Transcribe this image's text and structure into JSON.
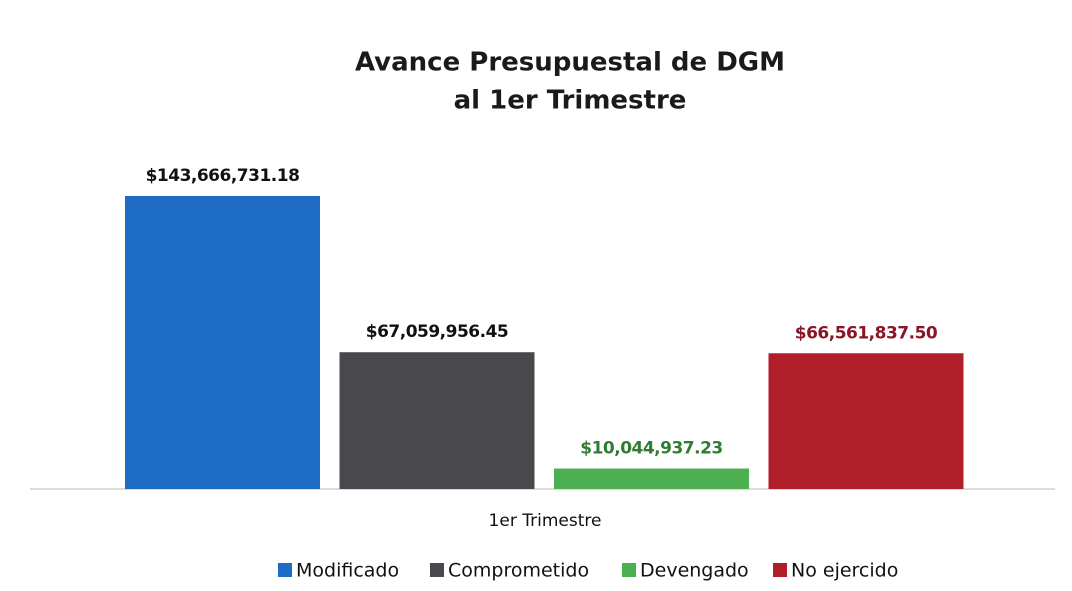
{
  "chart_data": {
    "type": "bar",
    "title": [
      "Avance Presupuestal de DGM",
      "al 1er Trimestre"
    ],
    "categories": [
      "1er Trimestre"
    ],
    "series": [
      {
        "name": "Modificado",
        "color": "#1f6cc6",
        "label_color": "#111111",
        "values": [
          143666731.18
        ],
        "value_labels": [
          "$143,666,731.18"
        ]
      },
      {
        "name": "Comprometido",
        "color": "#48484d",
        "label_color": "#111111",
        "values": [
          67059956.45
        ],
        "value_labels": [
          "$67,059,956.45"
        ]
      },
      {
        "name": "Devengado",
        "color": "#4caf50",
        "label_color": "#2e7d32",
        "values": [
          10044937.23
        ],
        "value_labels": [
          "$10,044,937.23"
        ]
      },
      {
        "name": "No ejercido",
        "color": "#b01e2a",
        "label_color": "#8a1526",
        "values": [
          66561837.5
        ],
        "value_labels": [
          "$66,561,837.50"
        ]
      }
    ],
    "legend": "bottom"
  }
}
